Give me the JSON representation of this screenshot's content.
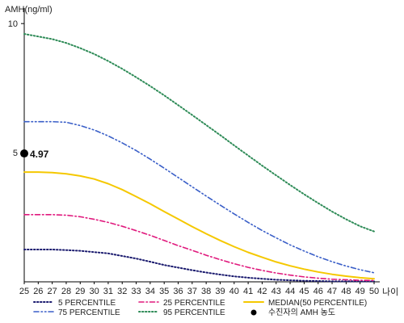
{
  "chart_data": {
    "type": "line",
    "ylabel": "AMH(ng/ml)",
    "xlabel": "나이",
    "x": [
      25,
      26,
      27,
      28,
      29,
      30,
      31,
      32,
      33,
      34,
      35,
      36,
      37,
      38,
      39,
      40,
      41,
      42,
      43,
      44,
      45,
      46,
      47,
      48,
      49,
      50
    ],
    "x_ticks": [
      "25",
      "26",
      "27",
      "28",
      "29",
      "30",
      "31",
      "32",
      "33",
      "34",
      "35",
      "36",
      "37",
      "38",
      "39",
      "40",
      "41",
      "42",
      "43",
      "44",
      "45",
      "46",
      "47",
      "48",
      "49",
      "50"
    ],
    "ylim": [
      0,
      10.6
    ],
    "y_ticks": [
      "5",
      "10"
    ],
    "y_tick_values": [
      5,
      10
    ],
    "grid": false,
    "legend_position": "bottom",
    "series": [
      {
        "name": "5 PERCENTILE",
        "color": "#1a1a6e",
        "dash": "dotted",
        "values": [
          1.25,
          1.25,
          1.25,
          1.23,
          1.2,
          1.15,
          1.1,
          1.0,
          0.9,
          0.78,
          0.65,
          0.55,
          0.45,
          0.36,
          0.28,
          0.21,
          0.16,
          0.12,
          0.08,
          0.06,
          0.04,
          0.03,
          0.02,
          0.02,
          0.02,
          0.02
        ]
      },
      {
        "name": "25 PERCENTILE",
        "color": "#e0197d",
        "dash": "dashdot",
        "values": [
          2.6,
          2.6,
          2.6,
          2.58,
          2.52,
          2.42,
          2.3,
          2.15,
          1.98,
          1.8,
          1.6,
          1.4,
          1.22,
          1.03,
          0.86,
          0.7,
          0.56,
          0.44,
          0.34,
          0.26,
          0.19,
          0.14,
          0.1,
          0.08,
          0.06,
          0.05
        ]
      },
      {
        "name": "MEDIAN(50 PERCENTILE)",
        "color": "#f5c800",
        "dash": "solid",
        "values": [
          4.25,
          4.25,
          4.23,
          4.18,
          4.1,
          3.98,
          3.8,
          3.57,
          3.3,
          3.02,
          2.72,
          2.43,
          2.14,
          1.86,
          1.6,
          1.36,
          1.14,
          0.95,
          0.77,
          0.62,
          0.49,
          0.38,
          0.29,
          0.22,
          0.16,
          0.12
        ]
      },
      {
        "name": "75 PERCENTILE",
        "color": "#3a5fc8",
        "dash": "dashdotdot",
        "values": [
          6.2,
          6.2,
          6.2,
          6.18,
          6.05,
          5.88,
          5.65,
          5.38,
          5.08,
          4.75,
          4.4,
          4.04,
          3.68,
          3.32,
          2.97,
          2.63,
          2.3,
          1.99,
          1.7,
          1.43,
          1.19,
          0.97,
          0.78,
          0.61,
          0.47,
          0.35
        ]
      },
      {
        "name": "95 PERCENTILE",
        "color": "#2e8b57",
        "dash": "dotted",
        "values": [
          9.6,
          9.5,
          9.4,
          9.25,
          9.05,
          8.82,
          8.55,
          8.25,
          7.92,
          7.58,
          7.22,
          6.84,
          6.46,
          6.07,
          5.68,
          5.28,
          4.89,
          4.5,
          4.12,
          3.75,
          3.39,
          3.05,
          2.72,
          2.42,
          2.15,
          1.95
        ]
      }
    ],
    "marker": {
      "name": "수진자의 AMH 농도",
      "x": 25,
      "y": 4.97,
      "label": "4.97",
      "color": "#000000"
    }
  }
}
